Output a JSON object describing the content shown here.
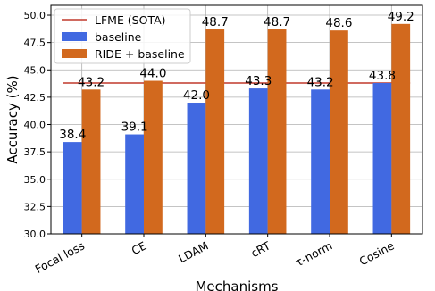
{
  "chart_data": {
    "type": "bar",
    "categories": [
      "Focal loss",
      "CE",
      "LDAM",
      "cRT",
      "τ-norm",
      "Cosine"
    ],
    "series": [
      {
        "name": "baseline",
        "color": "#4169e1",
        "values": [
          38.4,
          39.1,
          42.0,
          43.3,
          43.2,
          43.8
        ],
        "labels": [
          "38.4",
          "39.1",
          "42.0",
          "43.3",
          "43.2",
          "43.8"
        ]
      },
      {
        "name": "RIDE + baseline",
        "color": "#d2691e",
        "values": [
          43.2,
          44.0,
          48.7,
          48.7,
          48.6,
          49.2
        ],
        "labels": [
          "43.2",
          "44.0",
          "48.7",
          "48.7",
          "48.6",
          "49.2"
        ]
      }
    ],
    "reference_line": {
      "name": "LFME (SOTA)",
      "value": 43.8,
      "color": "#c0392b"
    },
    "xlabel": "Mechanisms",
    "ylabel": "Accuracy (%)",
    "ylim": [
      30.0,
      50.9
    ],
    "yticks": [
      30.0,
      32.5,
      35.0,
      37.5,
      40.0,
      42.5,
      45.0,
      47.5,
      50.0
    ],
    "ytick_labels": [
      "30.0",
      "32.5",
      "35.0",
      "37.5",
      "40.0",
      "42.5",
      "45.0",
      "47.5",
      "50.0"
    ],
    "grid": true,
    "legend_position": "top-left"
  }
}
